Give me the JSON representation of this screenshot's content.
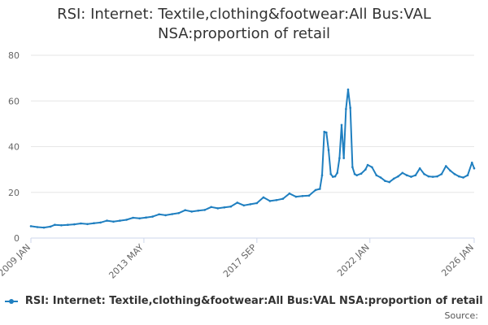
{
  "chart_data": {
    "type": "line",
    "title_lines": [
      "RSI: Internet: Textile,clothing&footwear:All Bus:VAL",
      "NSA:proportion of retail"
    ],
    "xlabel": "",
    "ylabel": "",
    "ylim": [
      0,
      80
    ],
    "y_ticks": [
      "0",
      "20",
      "40",
      "60",
      "80"
    ],
    "x_range": [
      "2009-01",
      "2026-01"
    ],
    "x_ticks": [
      {
        "date": "2009-01",
        "label": "2009 JAN"
      },
      {
        "date": "2013-05",
        "label": "2013 MAY"
      },
      {
        "date": "2017-09",
        "label": "2017 SEP"
      },
      {
        "date": "2022-01",
        "label": "2022 JAN"
      },
      {
        "date": "2026-01",
        "label": "2026 JAN"
      }
    ],
    "grid": "horizontal",
    "legend_position": "bottom",
    "series": [
      {
        "name": "RSI: Internet: Textile,clothing&footwear:All Bus:VAL NSA:proportion of retail",
        "color": "#1f7fc0",
        "points": [
          [
            "2009-01",
            5.2
          ],
          [
            "2009-04",
            4.8
          ],
          [
            "2009-07",
            4.6
          ],
          [
            "2009-10",
            5.0
          ],
          [
            "2009-12",
            5.8
          ],
          [
            "2010-03",
            5.6
          ],
          [
            "2010-06",
            5.8
          ],
          [
            "2010-09",
            6.0
          ],
          [
            "2010-12",
            6.4
          ],
          [
            "2011-03",
            6.1
          ],
          [
            "2011-06",
            6.5
          ],
          [
            "2011-09",
            6.8
          ],
          [
            "2011-12",
            7.6
          ],
          [
            "2012-03",
            7.2
          ],
          [
            "2012-06",
            7.6
          ],
          [
            "2012-09",
            8.0
          ],
          [
            "2012-12",
            8.9
          ],
          [
            "2013-03",
            8.6
          ],
          [
            "2013-06",
            9.0
          ],
          [
            "2013-09",
            9.4
          ],
          [
            "2013-12",
            10.4
          ],
          [
            "2014-03",
            10.0
          ],
          [
            "2014-06",
            10.5
          ],
          [
            "2014-09",
            10.9
          ],
          [
            "2014-12",
            12.2
          ],
          [
            "2015-03",
            11.6
          ],
          [
            "2015-06",
            12.0
          ],
          [
            "2015-09",
            12.3
          ],
          [
            "2015-12",
            13.6
          ],
          [
            "2016-03",
            13.0
          ],
          [
            "2016-06",
            13.4
          ],
          [
            "2016-09",
            13.8
          ],
          [
            "2016-12",
            15.5
          ],
          [
            "2017-03",
            14.3
          ],
          [
            "2017-06",
            14.8
          ],
          [
            "2017-09",
            15.3
          ],
          [
            "2017-12",
            17.8
          ],
          [
            "2018-03",
            16.2
          ],
          [
            "2018-06",
            16.6
          ],
          [
            "2018-09",
            17.2
          ],
          [
            "2018-12",
            19.5
          ],
          [
            "2019-03",
            18.1
          ],
          [
            "2019-06",
            18.4
          ],
          [
            "2019-09",
            18.6
          ],
          [
            "2019-12",
            21.0
          ],
          [
            "2020-02",
            21.5
          ],
          [
            "2020-03",
            27.5
          ],
          [
            "2020-04",
            46.5
          ],
          [
            "2020-05",
            46.2
          ],
          [
            "2020-06",
            38.5
          ],
          [
            "2020-07",
            28.0
          ],
          [
            "2020-08",
            26.8
          ],
          [
            "2020-09",
            27.0
          ],
          [
            "2020-10",
            28.5
          ],
          [
            "2020-11",
            35.0
          ],
          [
            "2020-12",
            49.5
          ],
          [
            "2021-01",
            35.0
          ],
          [
            "2021-02",
            56.5
          ],
          [
            "2021-03",
            65.0
          ],
          [
            "2021-04",
            57.0
          ],
          [
            "2021-05",
            31.0
          ],
          [
            "2021-06",
            28.0
          ],
          [
            "2021-07",
            27.5
          ],
          [
            "2021-09",
            28.2
          ],
          [
            "2021-11",
            30.0
          ],
          [
            "2021-12",
            32.0
          ],
          [
            "2022-02",
            31.0
          ],
          [
            "2022-04",
            27.5
          ],
          [
            "2022-06",
            26.5
          ],
          [
            "2022-08",
            25.0
          ],
          [
            "2022-10",
            24.5
          ],
          [
            "2022-12",
            26.0
          ],
          [
            "2023-02",
            27.0
          ],
          [
            "2023-04",
            28.5
          ],
          [
            "2023-06",
            27.5
          ],
          [
            "2023-08",
            26.8
          ],
          [
            "2023-10",
            27.5
          ],
          [
            "2023-12",
            30.5
          ],
          [
            "2024-02",
            28.0
          ],
          [
            "2024-04",
            27.0
          ],
          [
            "2024-06",
            26.8
          ],
          [
            "2024-08",
            27.0
          ],
          [
            "2024-10",
            28.0
          ],
          [
            "2024-12",
            31.5
          ],
          [
            "2025-02",
            29.5
          ],
          [
            "2025-04",
            28.0
          ],
          [
            "2025-06",
            27.0
          ],
          [
            "2025-08",
            26.5
          ],
          [
            "2025-10",
            27.5
          ],
          [
            "2025-12",
            33.0
          ],
          [
            "2026-01",
            30.5
          ]
        ]
      }
    ]
  },
  "credits": "Source:"
}
